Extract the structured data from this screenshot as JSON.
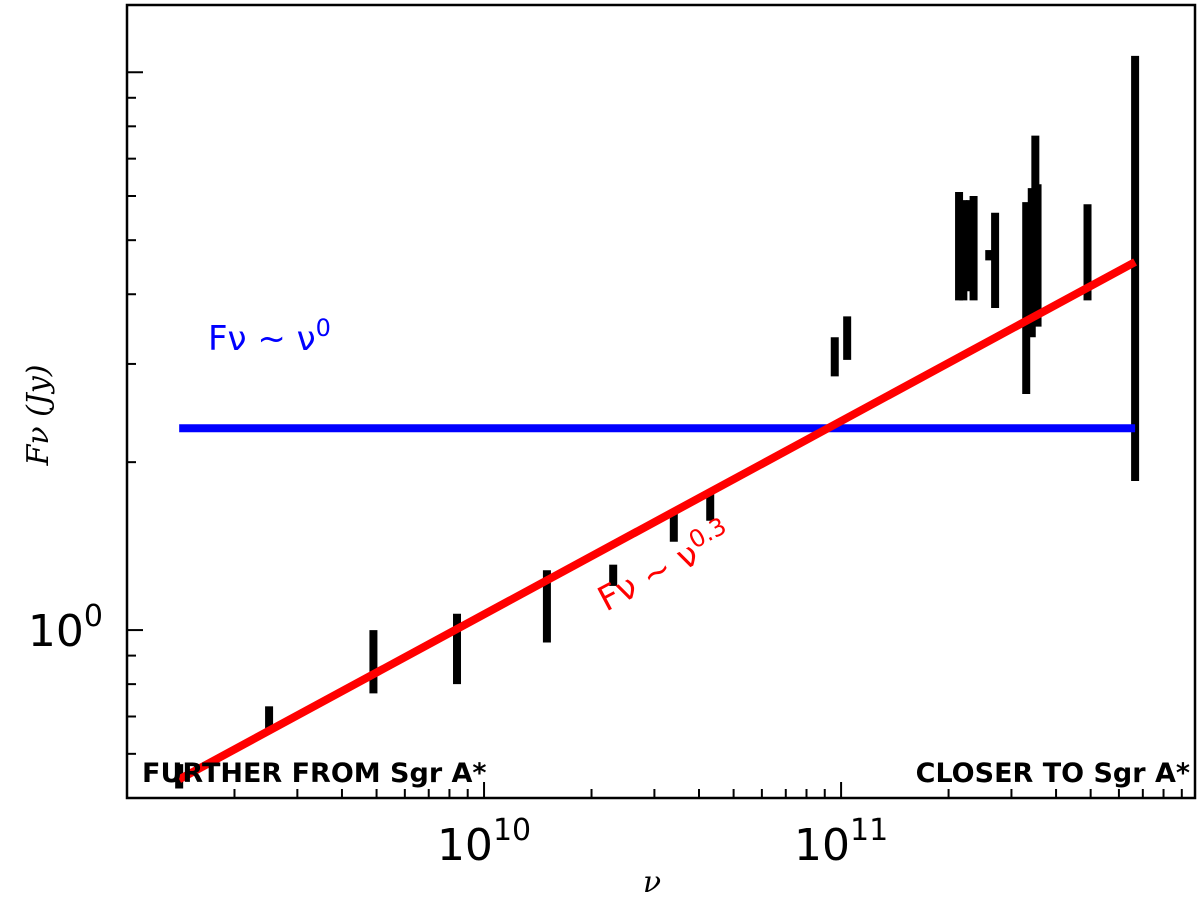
{
  "chart_data": {
    "type": "scatter",
    "title": "",
    "xlabel": "ν",
    "ylabel": "Fν (Jy)",
    "xscale": "log",
    "yscale": "log",
    "xlim": [
      1000000000.0,
      980000000000.0
    ],
    "ylim": [
      0.5,
      13.2
    ],
    "grid": false,
    "x_ticks": [
      {
        "value": 10000000000.0,
        "base": "10",
        "exp": "10"
      },
      {
        "value": 100000000000.0,
        "base": "10",
        "exp": "11"
      }
    ],
    "y_ticks": [
      {
        "value": 1.0,
        "base": "10",
        "exp": "0"
      }
    ],
    "series": [
      {
        "marker": "errorbar",
        "color": "#000000",
        "points": [
          {
            "x": 1400000000.0,
            "ylo": 0.52,
            "yhi": 0.575
          },
          {
            "x": 2500000000.0,
            "ylo": 0.665,
            "yhi": 0.73
          },
          {
            "x": 4900000000.0,
            "ylo": 0.77,
            "yhi": 1.0
          },
          {
            "x": 8400000000.0,
            "ylo": 0.8,
            "yhi": 1.07
          },
          {
            "x": 15000000000.0,
            "ylo": 0.95,
            "yhi": 1.28
          },
          {
            "x": 23000000000.0,
            "ylo": 1.2,
            "yhi": 1.31
          },
          {
            "x": 34000000000.0,
            "ylo": 1.44,
            "yhi": 1.64
          },
          {
            "x": 43000000000.0,
            "ylo": 1.57,
            "yhi": 1.78
          },
          {
            "x": 96000000000.0,
            "ylo": 2.85,
            "yhi": 3.35
          },
          {
            "x": 104000000000.0,
            "ylo": 3.05,
            "yhi": 3.65
          },
          {
            "x": 214000000000.0,
            "ylo": 3.9,
            "yhi": 6.1
          },
          {
            "x": 220000000000.0,
            "ylo": 3.9,
            "yhi": 5.9
          },
          {
            "x": 230000000000.0,
            "ylo": 4.05,
            "yhi": 5.9
          },
          {
            "x": 235000000000.0,
            "ylo": 3.9,
            "yhi": 6.0
          },
          {
            "x": 260000000000.0,
            "ylo": 4.6,
            "yhi": 4.8
          },
          {
            "x": 270000000000.0,
            "ylo": 3.78,
            "yhi": 5.6
          },
          {
            "x": 330000000000.0,
            "ylo": 2.65,
            "yhi": 5.85
          },
          {
            "x": 342000000000.0,
            "ylo": 3.35,
            "yhi": 6.2
          },
          {
            "x": 350000000000.0,
            "ylo": 3.55,
            "yhi": 7.7
          },
          {
            "x": 355000000000.0,
            "ylo": 3.5,
            "yhi": 6.3
          },
          {
            "x": 490000000000.0,
            "ylo": 3.9,
            "yhi": 5.8
          },
          {
            "x": 666000000000.0,
            "ylo": 1.85,
            "yhi": 10.7
          }
        ]
      }
    ],
    "lines": [
      {
        "name": "Fν ~ ν⁰",
        "color": "#0000ff",
        "x": [
          1400000000.0,
          666000000000.0
        ],
        "y": [
          2.3,
          2.3
        ]
      },
      {
        "name": "Fν ~ ν⁰˙³",
        "color": "#ff0000",
        "x": [
          1400000000.0,
          666000000000.0
        ],
        "y": [
          0.54,
          4.57
        ]
      }
    ],
    "labels": {
      "blue_curve": {
        "main": "Fν ~ ν",
        "exp": "0"
      },
      "red_curve": {
        "main": "Fν ~ ν",
        "exp": "0.3"
      },
      "left_corner": "FURTHER FROM Sgr A*",
      "right_corner": "CLOSER TO Sgr A*"
    }
  }
}
